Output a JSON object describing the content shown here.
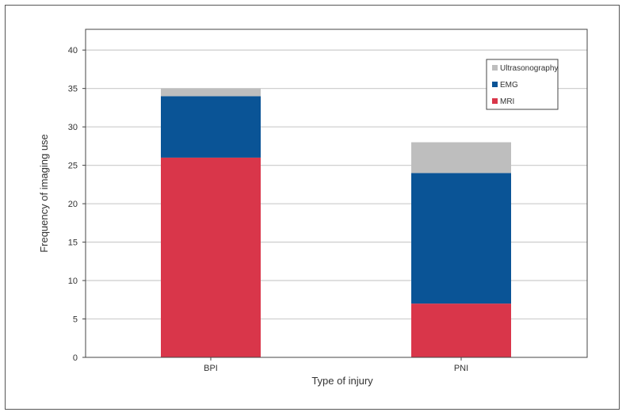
{
  "chart_data": {
    "type": "bar",
    "stacked": true,
    "title": "",
    "xlabel": "Type of injury",
    "ylabel": "Frequency of imaging use",
    "categories": [
      "BPI",
      "PNI"
    ],
    "series": [
      {
        "name": "MRI",
        "values": [
          26,
          7
        ],
        "color": "#d9364a"
      },
      {
        "name": "EMG",
        "values": [
          8,
          17
        ],
        "color": "#0a5496"
      },
      {
        "name": "Ultrasonography",
        "values": [
          1,
          4
        ],
        "color": "#bebebe"
      }
    ],
    "ylim": [
      0,
      42.7
    ],
    "yticks": [
      0,
      5,
      10,
      15,
      20,
      25,
      30,
      35,
      40
    ],
    "grid": true,
    "legend_position": "top-right",
    "legend_order": [
      "Ultrasonography",
      "EMG",
      "MRI"
    ]
  }
}
